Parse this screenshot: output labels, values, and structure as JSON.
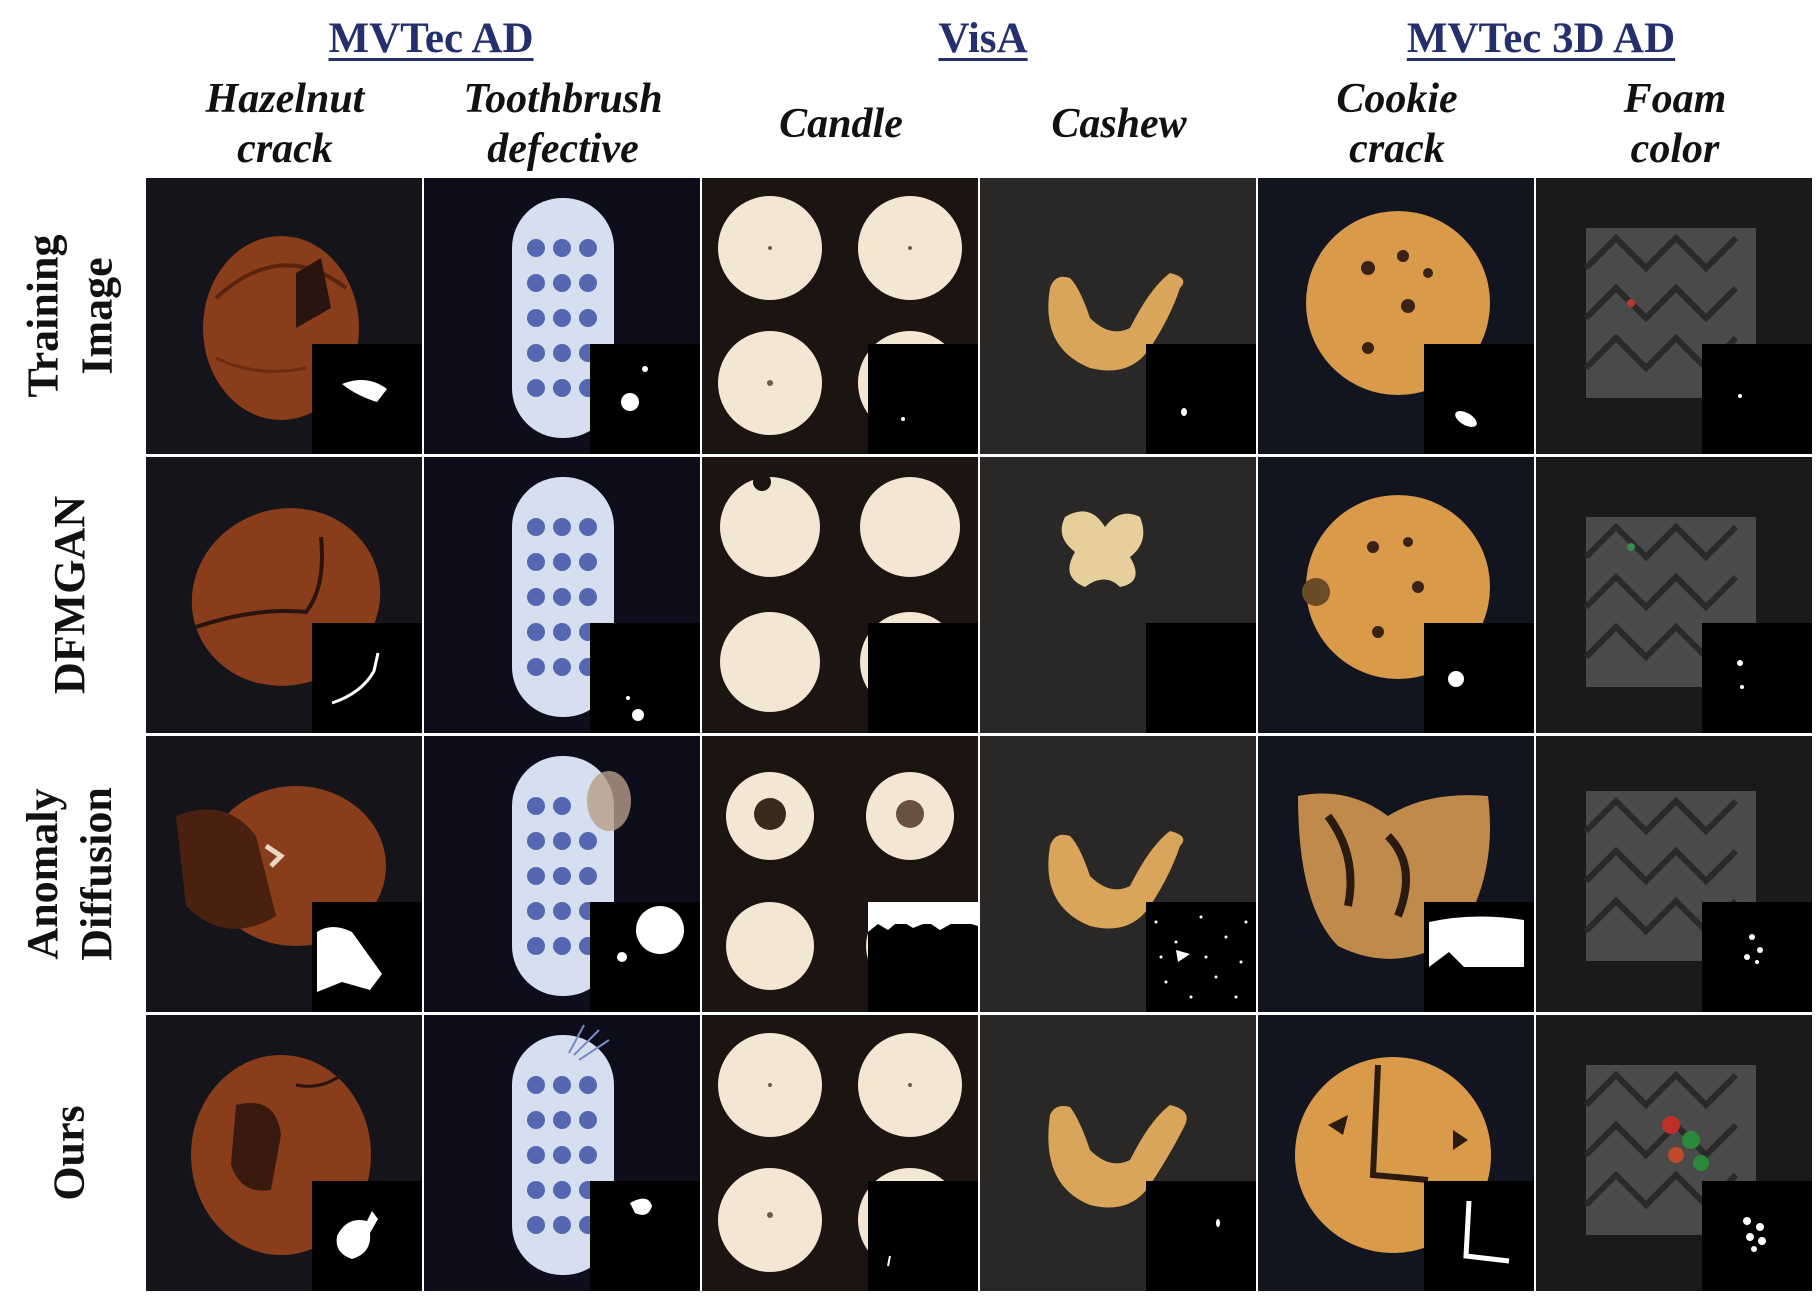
{
  "datasets": [
    {
      "name": "MVTec AD"
    },
    {
      "name": "VisA"
    },
    {
      "name": "MVTec 3D AD"
    }
  ],
  "columns": [
    {
      "line1": "Hazelnut",
      "line2": "crack"
    },
    {
      "line1": "Toothbrush",
      "line2": "defective"
    },
    {
      "line1": "Candle",
      "line2": ""
    },
    {
      "line1": "Cashew",
      "line2": ""
    },
    {
      "line1": "Cookie",
      "line2": "crack"
    },
    {
      "line1": "Foam",
      "line2": "color"
    }
  ],
  "rows": [
    {
      "line1": "Training",
      "line2": "Image"
    },
    {
      "line1": "DFMGAN",
      "line2": ""
    },
    {
      "line1": "Anomaly",
      "line2": "Diffusion"
    },
    {
      "line1": "Ours",
      "line2": ""
    }
  ],
  "palette": {
    "dataset_title": "#24306e",
    "hazelnut": "#8a3d1a",
    "candle": "#f3e7d3",
    "cashew": "#d9a55a",
    "cookie": "#d99a4a",
    "foam": "#4a4a4a",
    "toothbrush_head": "#d6dff0",
    "bristles": "#5467b0"
  }
}
